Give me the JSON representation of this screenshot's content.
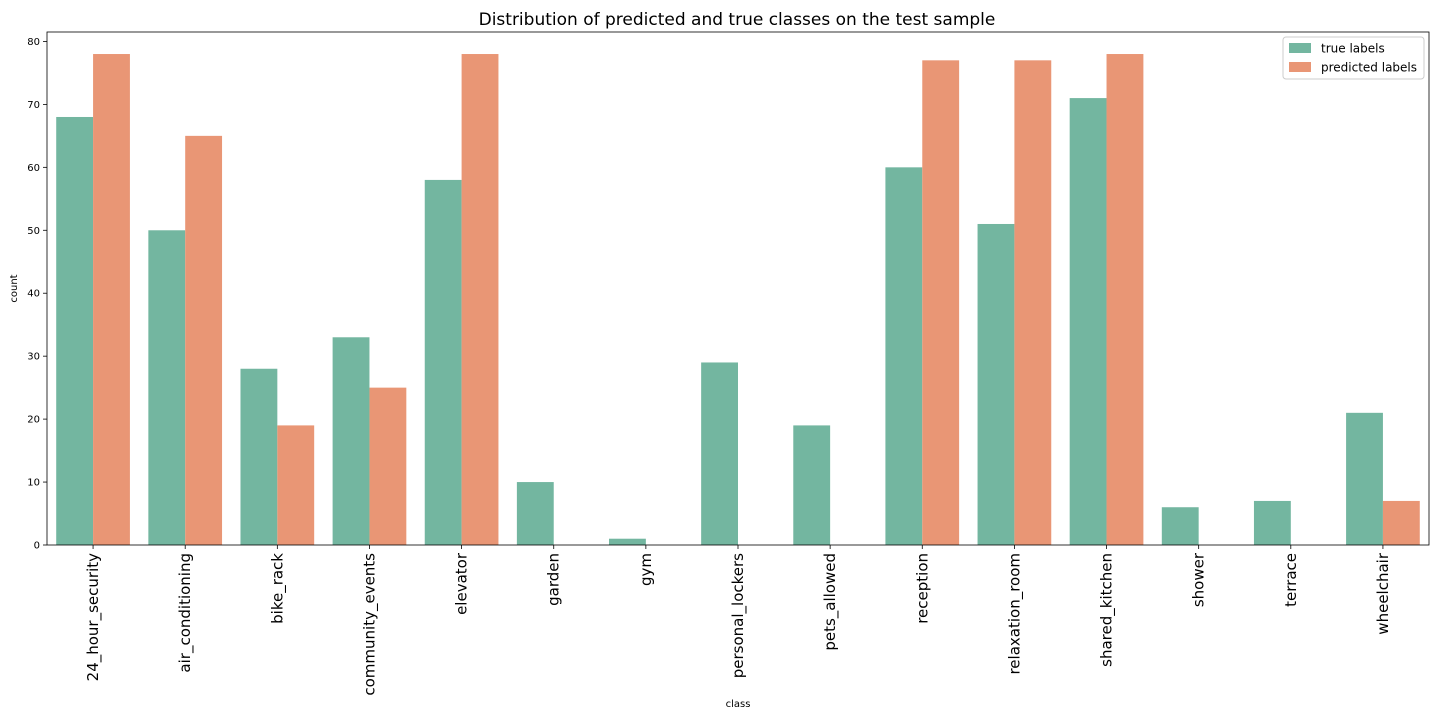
{
  "chart_data": {
    "type": "bar",
    "title": "Distribution of predicted and true classes on the test sample",
    "xlabel": "class",
    "ylabel": "count",
    "ylim": [
      0,
      81.5
    ],
    "yticks": [
      0,
      10,
      20,
      30,
      40,
      50,
      60,
      70,
      80
    ],
    "grid": false,
    "legend_position": "top-right",
    "categories": [
      "24_hour_security",
      "air_conditioning",
      "bike_rack",
      "community_events",
      "elevator",
      "garden",
      "gym",
      "personal_lockers",
      "pets_allowed",
      "reception",
      "relaxation_room",
      "shared_kitchen",
      "shower",
      "terrace",
      "wheelchair"
    ],
    "series": [
      {
        "name": "true labels",
        "color": "#73b6a0",
        "values": [
          68,
          50,
          28,
          33,
          58,
          10,
          1,
          29,
          19,
          60,
          51,
          71,
          6,
          7,
          21
        ]
      },
      {
        "name": "predicted labels",
        "color": "#e99675",
        "values": [
          78,
          65,
          19,
          25,
          78,
          0,
          0,
          0,
          0,
          77,
          77,
          78,
          0,
          0,
          7
        ]
      }
    ]
  }
}
